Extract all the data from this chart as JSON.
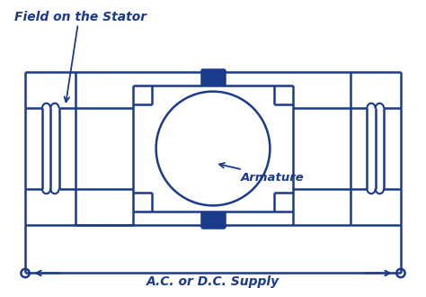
{
  "bg_color": "#ffffff",
  "line_color": "#1a3a8c",
  "lw": 1.8,
  "fig_width": 4.74,
  "fig_height": 3.3,
  "dpi": 100,
  "title_text": "Field on the Stator",
  "armature_text": "Armature",
  "supply_text": "A.C. or D.C. Supply",
  "text_color": "#1a3a8c"
}
